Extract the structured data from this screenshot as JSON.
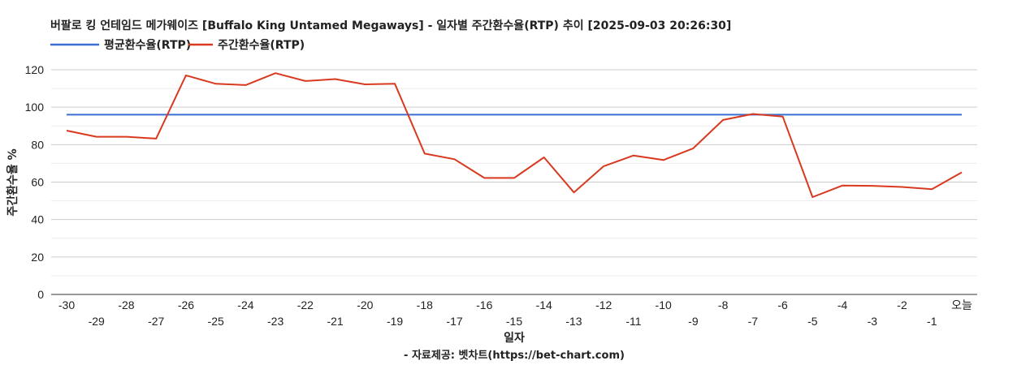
{
  "chart_data": {
    "type": "line",
    "title": "버팔로 킹 언테임드 메가웨이즈 [Buffalo King Untamed Megaways] - 일자별 주간환수율(RTP) 추이 [2025-09-03 20:26:30]",
    "xlabel": "일자",
    "ylabel": "주간환수율 %",
    "footer": "- 자료제공: 벳차트(https://bet-chart.com)",
    "ylim": [
      0,
      120
    ],
    "yticks": [
      0,
      20,
      40,
      60,
      80,
      100,
      120
    ],
    "grid": true,
    "legend_position": "top-left",
    "categories": [
      "-30",
      "-29",
      "-28",
      "-27",
      "-26",
      "-25",
      "-24",
      "-23",
      "-22",
      "-21",
      "-20",
      "-19",
      "-18",
      "-17",
      "-16",
      "-15",
      "-14",
      "-13",
      "-12",
      "-11",
      "-10",
      "-9",
      "-8",
      "-7",
      "-6",
      "-5",
      "-4",
      "-3",
      "-2",
      "-1",
      "오늘"
    ],
    "series": [
      {
        "name": "평균환수율(RTP)",
        "color": "#3b6fd4",
        "values": [
          96,
          96,
          96,
          96,
          96,
          96,
          96,
          96,
          96,
          96,
          96,
          96,
          96,
          96,
          96,
          96,
          96,
          96,
          96,
          96,
          96,
          96,
          96,
          96,
          96,
          96,
          96,
          96,
          96,
          96,
          96
        ]
      },
      {
        "name": "주간환수율(RTP)",
        "color": "#d9391f",
        "values": [
          87.5,
          84.2,
          84.2,
          83.2,
          117,
          112.5,
          111.8,
          118.2,
          114,
          115,
          112.2,
          112.5,
          75.2,
          72.2,
          62.2,
          62.2,
          73.2,
          54.5,
          68.5,
          74.2,
          71.8,
          78,
          93.2,
          96.4,
          95,
          52,
          58.2,
          58,
          57.4,
          56.2,
          65.2
        ]
      }
    ]
  }
}
